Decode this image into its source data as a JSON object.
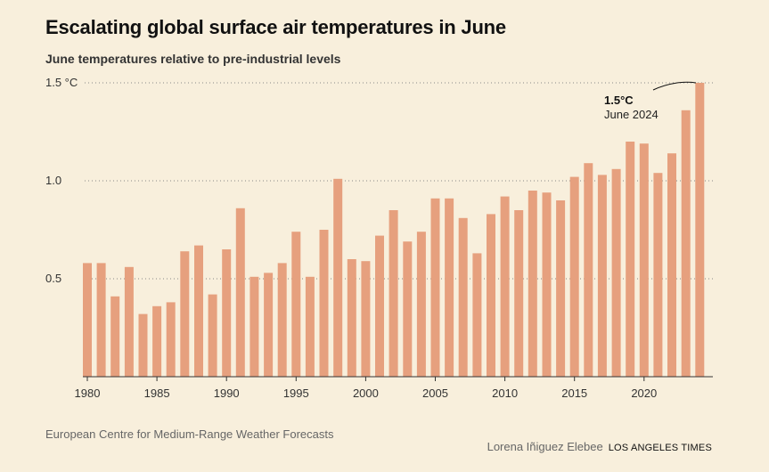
{
  "header": {
    "title": "Escalating global surface air temperatures in June",
    "subtitle": "June temperatures relative to pre-industrial levels"
  },
  "annotation": {
    "value": "1.5°C",
    "label": "June 2024"
  },
  "footer": {
    "source": "European Centre for Medium-Range Weather Forecasts",
    "author": "Lorena Iñiguez Elebee",
    "outlet": "LOS ANGELES TIMES"
  },
  "colors": {
    "bar": "#e6a07e",
    "background": "#f8efdc",
    "gridline": "#888888"
  },
  "chart_data": {
    "type": "bar",
    "title": "Escalating global surface air temperatures in June",
    "subtitle": "June temperatures relative to pre-industrial levels",
    "xlabel": "",
    "ylabel": "",
    "ylim": [
      0,
      1.5
    ],
    "yticks": [
      {
        "value": 0.5,
        "label": "0.5"
      },
      {
        "value": 1.0,
        "label": "1.0"
      },
      {
        "value": 1.5,
        "label": "1.5 °C"
      }
    ],
    "xticks": [
      1980,
      1985,
      1990,
      1995,
      2000,
      2005,
      2010,
      2015,
      2020
    ],
    "xlim": [
      1980,
      2024
    ],
    "grid": "horizontal-dotted",
    "categories": [
      1980,
      1981,
      1982,
      1983,
      1984,
      1985,
      1986,
      1987,
      1988,
      1989,
      1990,
      1991,
      1992,
      1993,
      1994,
      1995,
      1996,
      1997,
      1998,
      1999,
      2000,
      2001,
      2002,
      2003,
      2004,
      2005,
      2006,
      2007,
      2008,
      2009,
      2010,
      2011,
      2012,
      2013,
      2014,
      2015,
      2016,
      2017,
      2018,
      2019,
      2020,
      2021,
      2022,
      2023,
      2024
    ],
    "values": [
      0.58,
      0.58,
      0.41,
      0.56,
      0.32,
      0.36,
      0.38,
      0.64,
      0.67,
      0.42,
      0.65,
      0.86,
      0.51,
      0.53,
      0.58,
      0.74,
      0.51,
      0.75,
      1.01,
      0.6,
      0.59,
      0.72,
      0.85,
      0.69,
      0.74,
      0.91,
      0.91,
      0.81,
      0.63,
      0.83,
      0.92,
      0.85,
      0.95,
      0.94,
      0.9,
      1.02,
      1.09,
      1.03,
      1.06,
      1.2,
      1.19,
      1.04,
      1.14,
      1.36,
      1.5
    ]
  }
}
